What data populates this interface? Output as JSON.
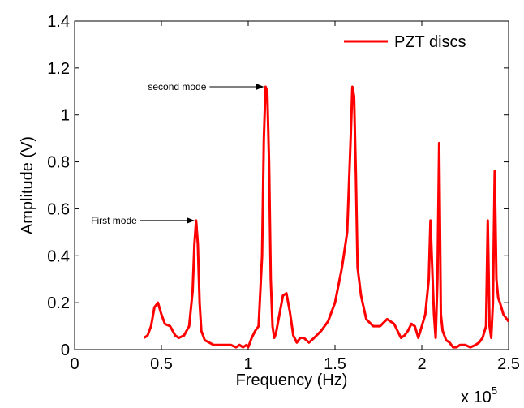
{
  "chart_data": {
    "type": "line",
    "xlabel": "Frequency (Hz)",
    "ylabel": "Amplitude (V)",
    "x_multiplier_base": "x 10",
    "x_multiplier_exponent": "5",
    "xlim": [
      0,
      2.5
    ],
    "ylim": [
      0,
      1.4
    ],
    "x_ticks": [
      0,
      0.5,
      1,
      1.5,
      2,
      2.5
    ],
    "x_tick_labels": [
      "0",
      "0.5",
      "1",
      "1.5",
      "2",
      "2.5"
    ],
    "y_ticks": [
      0,
      0.2,
      0.4,
      0.6,
      0.8,
      1,
      1.2,
      1.4
    ],
    "y_tick_labels": [
      "0",
      "0.2",
      "0.4",
      "0.6",
      "0.8",
      "1",
      "1.2",
      "1.4"
    ],
    "grid": false,
    "legend_position": "top-right",
    "series": [
      {
        "name": "PZT discs",
        "color": "#ff0000",
        "x": [
          0.4,
          0.42,
          0.44,
          0.46,
          0.48,
          0.5,
          0.52,
          0.55,
          0.58,
          0.6,
          0.63,
          0.66,
          0.68,
          0.69,
          0.7,
          0.71,
          0.72,
          0.73,
          0.75,
          0.8,
          0.85,
          0.9,
          0.93,
          0.95,
          0.97,
          0.99,
          1.0,
          1.02,
          1.04,
          1.06,
          1.08,
          1.09,
          1.1,
          1.11,
          1.12,
          1.13,
          1.14,
          1.15,
          1.16,
          1.18,
          1.2,
          1.22,
          1.24,
          1.26,
          1.28,
          1.3,
          1.32,
          1.35,
          1.38,
          1.42,
          1.46,
          1.5,
          1.54,
          1.57,
          1.59,
          1.6,
          1.61,
          1.62,
          1.63,
          1.65,
          1.68,
          1.72,
          1.76,
          1.8,
          1.84,
          1.88,
          1.9,
          1.92,
          1.94,
          1.96,
          1.98,
          2.0,
          2.02,
          2.04,
          2.05,
          2.06,
          2.07,
          2.08,
          2.09,
          2.1,
          2.11,
          2.12,
          2.14,
          2.16,
          2.18,
          2.2,
          2.22,
          2.25,
          2.28,
          2.31,
          2.33,
          2.35,
          2.37,
          2.38,
          2.39,
          2.4,
          2.41,
          2.42,
          2.43,
          2.44,
          2.45,
          2.47,
          2.5
        ],
        "y": [
          0.05,
          0.06,
          0.1,
          0.18,
          0.2,
          0.15,
          0.11,
          0.1,
          0.06,
          0.05,
          0.06,
          0.1,
          0.25,
          0.45,
          0.55,
          0.45,
          0.2,
          0.08,
          0.04,
          0.02,
          0.02,
          0.02,
          0.01,
          0.02,
          0.01,
          0.02,
          0.01,
          0.05,
          0.08,
          0.1,
          0.4,
          0.9,
          1.12,
          1.1,
          0.8,
          0.3,
          0.1,
          0.05,
          0.07,
          0.15,
          0.23,
          0.24,
          0.16,
          0.06,
          0.03,
          0.05,
          0.05,
          0.03,
          0.05,
          0.08,
          0.12,
          0.2,
          0.35,
          0.5,
          0.9,
          1.12,
          1.08,
          0.75,
          0.35,
          0.23,
          0.13,
          0.1,
          0.1,
          0.13,
          0.11,
          0.05,
          0.06,
          0.08,
          0.11,
          0.1,
          0.05,
          0.1,
          0.15,
          0.3,
          0.55,
          0.35,
          0.15,
          0.05,
          0.3,
          0.88,
          0.15,
          0.08,
          0.04,
          0.03,
          0.01,
          0.01,
          0.02,
          0.02,
          0.01,
          0.02,
          0.03,
          0.05,
          0.1,
          0.55,
          0.1,
          0.05,
          0.2,
          0.76,
          0.3,
          0.22,
          0.2,
          0.15,
          0.12
        ]
      }
    ],
    "annotations": [
      {
        "text": "second mode",
        "x": 1.1,
        "y": 1.12
      },
      {
        "text": "First mode",
        "x": 0.7,
        "y": 0.55
      }
    ]
  }
}
